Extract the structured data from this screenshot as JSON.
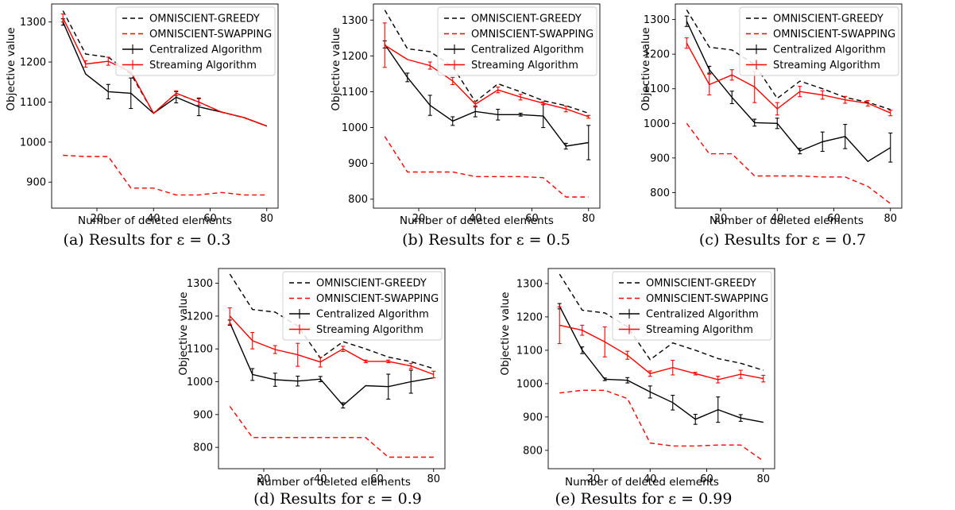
{
  "legend": {
    "greedy": "OMNISCIENT-GREEDY",
    "swapping": "OMNISCIENT-SWAPPING",
    "centralized": "Centralized Algorithm",
    "streaming": "Streaming Algorithm"
  },
  "colors": {
    "greedy": "#000000",
    "swapping": "#ff0000",
    "centralized": "#000000",
    "streaming": "#ff0000"
  },
  "chart_data": [
    {
      "type": "line",
      "caption": "(a) Results for ε = 0.3",
      "xlabel": "Number of deleted elements",
      "ylabel": "Objective value",
      "xlim": [
        4,
        84
      ],
      "ylim": [
        835,
        1345
      ],
      "xticks": [
        20,
        40,
        60,
        80
      ],
      "yticks": [
        900,
        1000,
        1100,
        1200,
        1300
      ],
      "x": [
        8,
        16,
        24,
        32,
        40,
        48,
        56,
        64,
        72,
        80
      ],
      "legend_position": "top-right",
      "series": [
        {
          "key": "greedy",
          "values": [
            1328,
            1220,
            1212,
            1170,
            1072,
            1122,
            1100,
            1075,
            1061,
            1040
          ]
        },
        {
          "key": "swapping",
          "values": [
            967,
            964,
            964,
            885,
            885,
            868,
            868,
            874,
            868,
            868
          ]
        },
        {
          "key": "centralized",
          "values": [
            1300,
            1170,
            1126,
            1122,
            1072,
            1112,
            1088,
            1075,
            1061,
            1040
          ],
          "errors": [
            8,
            0,
            18,
            38,
            0,
            14,
            22,
            0,
            0,
            0
          ]
        },
        {
          "key": "streaming",
          "values": [
            1310,
            1195,
            1202,
            1175,
            1072,
            1122,
            1100,
            1075,
            1061,
            1040
          ],
          "errors": [
            10,
            8,
            10,
            0,
            0,
            6,
            8,
            0,
            0,
            0
          ]
        }
      ]
    },
    {
      "type": "line",
      "caption": "(b) Results for ε = 0.5",
      "xlabel": "Number of deleted elements",
      "ylabel": "Objective value",
      "xlim": [
        4,
        84
      ],
      "ylim": [
        775,
        1345
      ],
      "xticks": [
        20,
        40,
        60,
        80
      ],
      "yticks": [
        800,
        900,
        1000,
        1100,
        1200,
        1300
      ],
      "x": [
        8,
        16,
        24,
        32,
        40,
        48,
        56,
        64,
        72,
        80
      ],
      "legend_position": "top-right",
      "series": [
        {
          "key": "greedy",
          "values": [
            1328,
            1220,
            1212,
            1170,
            1072,
            1122,
            1100,
            1075,
            1061,
            1040
          ]
        },
        {
          "key": "swapping",
          "values": [
            975,
            876,
            876,
            876,
            863,
            863,
            863,
            860,
            806,
            806
          ]
        },
        {
          "key": "centralized",
          "values": [
            1232,
            1140,
            1062,
            1018,
            1045,
            1036,
            1036,
            1032,
            948,
            958
          ],
          "errors": [
            10,
            12,
            28,
            12,
            15,
            15,
            4,
            32,
            8,
            48
          ]
        },
        {
          "key": "streaming",
          "values": [
            1230,
            1190,
            1173,
            1130,
            1065,
            1105,
            1085,
            1068,
            1052,
            1030
          ],
          "errors": [
            62,
            0,
            10,
            10,
            8,
            8,
            8,
            4,
            8,
            4
          ]
        }
      ]
    },
    {
      "type": "line",
      "caption": "(c) Results for ε = 0.7",
      "xlabel": "Number of deleted elements",
      "ylabel": "Objective value",
      "xlim": [
        4,
        84
      ],
      "ylim": [
        755,
        1345
      ],
      "xticks": [
        20,
        40,
        60,
        80
      ],
      "yticks": [
        800,
        900,
        1000,
        1100,
        1200,
        1300
      ],
      "x": [
        8,
        16,
        24,
        32,
        40,
        48,
        56,
        64,
        72,
        80
      ],
      "legend_position": "top-right",
      "series": [
        {
          "key": "greedy",
          "values": [
            1328,
            1220,
            1212,
            1170,
            1072,
            1122,
            1100,
            1075,
            1061,
            1040
          ]
        },
        {
          "key": "swapping",
          "values": [
            1000,
            912,
            912,
            848,
            848,
            848,
            845,
            845,
            818,
            768
          ]
        },
        {
          "key": "centralized",
          "values": [
            1295,
            1155,
            1075,
            1002,
            1000,
            920,
            947,
            962,
            890,
            930
          ],
          "errors": [
            15,
            10,
            18,
            10,
            15,
            8,
            28,
            35,
            0,
            42
          ]
        },
        {
          "key": "streaming",
          "values": [
            1232,
            1112,
            1140,
            1105,
            1042,
            1092,
            1082,
            1068,
            1058,
            1030
          ],
          "errors": [
            15,
            30,
            15,
            45,
            18,
            15,
            12,
            10,
            8,
            8
          ]
        }
      ]
    },
    {
      "type": "line",
      "caption": "(d) Results for ε = 0.9",
      "xlabel": "Number of deleted elements",
      "ylabel": "Objective value",
      "xlim": [
        4,
        84
      ],
      "ylim": [
        735,
        1345
      ],
      "xticks": [
        20,
        40,
        60,
        80
      ],
      "yticks": [
        800,
        900,
        1000,
        1100,
        1200,
        1300
      ],
      "x": [
        8,
        16,
        24,
        32,
        40,
        48,
        56,
        64,
        72,
        80
      ],
      "legend_position": "top-right",
      "series": [
        {
          "key": "greedy",
          "values": [
            1328,
            1220,
            1212,
            1170,
            1072,
            1122,
            1100,
            1075,
            1061,
            1040
          ]
        },
        {
          "key": "swapping",
          "values": [
            925,
            830,
            830,
            830,
            830,
            830,
            830,
            770,
            770,
            770
          ]
        },
        {
          "key": "centralized",
          "values": [
            1180,
            1022,
            1006,
            1002,
            1008,
            928,
            988,
            985,
            1000,
            1012
          ],
          "errors": [
            8,
            18,
            20,
            15,
            8,
            8,
            0,
            38,
            35,
            0
          ]
        },
        {
          "key": "streaming",
          "values": [
            1200,
            1125,
            1098,
            1082,
            1060,
            1100,
            1062,
            1062,
            1048,
            1022
          ],
          "errors": [
            25,
            25,
            12,
            35,
            15,
            8,
            4,
            4,
            8,
            10
          ]
        }
      ]
    },
    {
      "type": "line",
      "caption": "(e) Results for ε = 0.99",
      "xlabel": "Number of deleted elements",
      "ylabel": "Objective value",
      "xlim": [
        4,
        84
      ],
      "ylim": [
        745,
        1345
      ],
      "xticks": [
        20,
        40,
        60,
        80
      ],
      "yticks": [
        800,
        900,
        1000,
        1100,
        1200,
        1300
      ],
      "x": [
        8,
        16,
        24,
        32,
        40,
        48,
        56,
        64,
        72,
        80
      ],
      "legend_position": "top-right",
      "series": [
        {
          "key": "greedy",
          "values": [
            1328,
            1220,
            1212,
            1170,
            1072,
            1122,
            1100,
            1075,
            1061,
            1040
          ]
        },
        {
          "key": "swapping",
          "values": [
            972,
            980,
            980,
            955,
            822,
            813,
            813,
            816,
            816,
            768
          ]
        },
        {
          "key": "centralized",
          "values": [
            1232,
            1100,
            1013,
            1010,
            975,
            943,
            893,
            922,
            897,
            884
          ],
          "errors": [
            8,
            10,
            4,
            8,
            18,
            22,
            15,
            38,
            10,
            0
          ]
        },
        {
          "key": "streaming",
          "values": [
            1175,
            1160,
            1125,
            1085,
            1030,
            1048,
            1030,
            1012,
            1028,
            1015
          ],
          "errors": [
            55,
            15,
            45,
            12,
            8,
            22,
            4,
            10,
            12,
            10
          ]
        }
      ]
    }
  ]
}
